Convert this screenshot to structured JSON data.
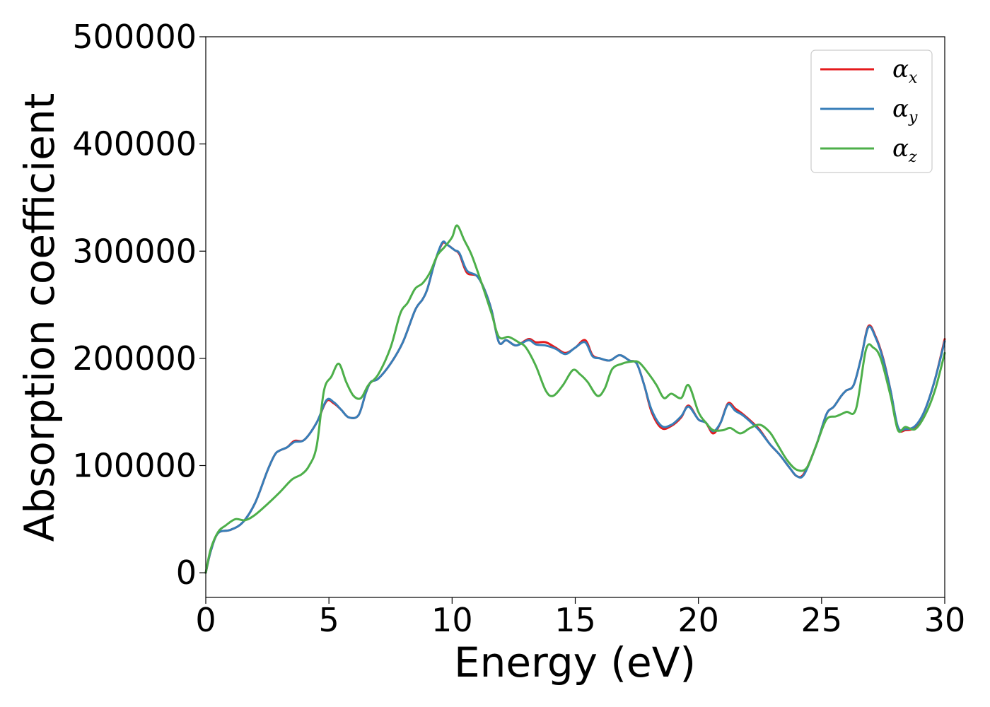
{
  "chart_data": {
    "type": "line",
    "title": "",
    "xlabel": "Energy (eV)",
    "ylabel": "Absorption coefficient",
    "xlim": [
      0,
      30
    ],
    "ylim": [
      -23000,
      500000
    ],
    "x_ticks": [
      0,
      5,
      10,
      15,
      20,
      25,
      30
    ],
    "x_tick_labels": [
      "0",
      "5",
      "10",
      "15",
      "20",
      "25",
      "30"
    ],
    "y_ticks": [
      0,
      100000,
      200000,
      300000,
      400000,
      500000
    ],
    "y_tick_labels": [
      "0",
      "100000",
      "200000",
      "300000",
      "400000",
      "500000"
    ],
    "grid": false,
    "legend_position": "top-right",
    "series": [
      {
        "name": "α",
        "subscript": "x",
        "color": "#e41a1c",
        "points": [
          [
            0,
            0
          ],
          [
            0.2,
            20000
          ],
          [
            0.5,
            37000
          ],
          [
            1,
            40000
          ],
          [
            1.5,
            47000
          ],
          [
            2,
            65000
          ],
          [
            2.5,
            95000
          ],
          [
            2.8,
            110000
          ],
          [
            3,
            114000
          ],
          [
            3.3,
            117000
          ],
          [
            3.6,
            123000
          ],
          [
            4,
            124000
          ],
          [
            4.5,
            140000
          ],
          [
            4.9,
            160000
          ],
          [
            5.2,
            158000
          ],
          [
            5.5,
            152000
          ],
          [
            5.8,
            145000
          ],
          [
            6.2,
            147000
          ],
          [
            6.5,
            168000
          ],
          [
            6.7,
            178000
          ],
          [
            7,
            181000
          ],
          [
            7.5,
            195000
          ],
          [
            8,
            215000
          ],
          [
            8.5,
            245000
          ],
          [
            8.8,
            255000
          ],
          [
            9,
            265000
          ],
          [
            9.3,
            290000
          ],
          [
            9.6,
            307000
          ],
          [
            9.8,
            306000
          ],
          [
            10.1,
            301000
          ],
          [
            10.3,
            297000
          ],
          [
            10.6,
            280000
          ],
          [
            11,
            277000
          ],
          [
            11.3,
            265000
          ],
          [
            11.6,
            245000
          ],
          [
            11.9,
            215000
          ],
          [
            12.2,
            217000
          ],
          [
            12.6,
            212000
          ],
          [
            13.1,
            218000
          ],
          [
            13.4,
            215000
          ],
          [
            13.8,
            215000
          ],
          [
            14.2,
            210000
          ],
          [
            14.6,
            205000
          ],
          [
            15,
            210000
          ],
          [
            15.4,
            217000
          ],
          [
            15.7,
            203000
          ],
          [
            16,
            200000
          ],
          [
            16.4,
            198000
          ],
          [
            16.8,
            203000
          ],
          [
            17.2,
            198000
          ],
          [
            17.5,
            195000
          ],
          [
            17.8,
            175000
          ],
          [
            18.1,
            150000
          ],
          [
            18.5,
            135000
          ],
          [
            18.9,
            137000
          ],
          [
            19.3,
            145000
          ],
          [
            19.6,
            156000
          ],
          [
            20,
            143000
          ],
          [
            20.3,
            140000
          ],
          [
            20.6,
            130000
          ],
          [
            20.9,
            140000
          ],
          [
            21.2,
            158000
          ],
          [
            21.5,
            153000
          ],
          [
            21.8,
            148000
          ],
          [
            22.2,
            140000
          ],
          [
            22.5,
            133000
          ],
          [
            22.9,
            120000
          ],
          [
            23.3,
            110000
          ],
          [
            23.7,
            98000
          ],
          [
            24,
            90000
          ],
          [
            24.3,
            93000
          ],
          [
            24.8,
            120000
          ],
          [
            25.2,
            148000
          ],
          [
            25.5,
            155000
          ],
          [
            25.8,
            165000
          ],
          [
            26,
            170000
          ],
          [
            26.3,
            175000
          ],
          [
            26.6,
            200000
          ],
          [
            26.9,
            230000
          ],
          [
            27.2,
            220000
          ],
          [
            27.5,
            200000
          ],
          [
            27.8,
            170000
          ],
          [
            28.1,
            135000
          ],
          [
            28.4,
            133000
          ],
          [
            28.8,
            136000
          ],
          [
            29.2,
            152000
          ],
          [
            29.6,
            180000
          ],
          [
            30,
            218000
          ]
        ]
      },
      {
        "name": "α",
        "subscript": "y",
        "color": "#377eb8",
        "points": [
          [
            0,
            0
          ],
          [
            0.2,
            20000
          ],
          [
            0.5,
            37000
          ],
          [
            1,
            40000
          ],
          [
            1.5,
            47000
          ],
          [
            2,
            65000
          ],
          [
            2.5,
            95000
          ],
          [
            2.8,
            110000
          ],
          [
            3,
            114000
          ],
          [
            3.3,
            117000
          ],
          [
            3.6,
            122000
          ],
          [
            4,
            124000
          ],
          [
            4.5,
            140000
          ],
          [
            4.9,
            161000
          ],
          [
            5.2,
            159000
          ],
          [
            5.5,
            152000
          ],
          [
            5.8,
            145000
          ],
          [
            6.2,
            147000
          ],
          [
            6.5,
            168000
          ],
          [
            6.7,
            178000
          ],
          [
            7,
            181000
          ],
          [
            7.5,
            195000
          ],
          [
            8,
            215000
          ],
          [
            8.5,
            245000
          ],
          [
            8.8,
            255000
          ],
          [
            9,
            265000
          ],
          [
            9.3,
            290000
          ],
          [
            9.6,
            308000
          ],
          [
            9.8,
            306000
          ],
          [
            10.1,
            301000
          ],
          [
            10.3,
            298000
          ],
          [
            10.6,
            282000
          ],
          [
            11,
            277000
          ],
          [
            11.3,
            265000
          ],
          [
            11.6,
            245000
          ],
          [
            11.9,
            215000
          ],
          [
            12.2,
            217000
          ],
          [
            12.6,
            212000
          ],
          [
            13.1,
            217000
          ],
          [
            13.4,
            213000
          ],
          [
            13.8,
            212000
          ],
          [
            14.2,
            209000
          ],
          [
            14.6,
            204000
          ],
          [
            15,
            210000
          ],
          [
            15.4,
            215000
          ],
          [
            15.7,
            202000
          ],
          [
            16,
            200000
          ],
          [
            16.4,
            198000
          ],
          [
            16.8,
            203000
          ],
          [
            17.2,
            198000
          ],
          [
            17.5,
            195000
          ],
          [
            17.8,
            175000
          ],
          [
            18.1,
            152000
          ],
          [
            18.5,
            137000
          ],
          [
            18.9,
            138000
          ],
          [
            19.3,
            146000
          ],
          [
            19.6,
            155000
          ],
          [
            20,
            143000
          ],
          [
            20.3,
            140000
          ],
          [
            20.6,
            132000
          ],
          [
            20.9,
            140000
          ],
          [
            21.2,
            157000
          ],
          [
            21.5,
            151000
          ],
          [
            21.8,
            147000
          ],
          [
            22.2,
            139000
          ],
          [
            22.5,
            132000
          ],
          [
            22.9,
            120000
          ],
          [
            23.3,
            110000
          ],
          [
            23.7,
            98000
          ],
          [
            24,
            90000
          ],
          [
            24.3,
            92000
          ],
          [
            24.8,
            120000
          ],
          [
            25.2,
            148000
          ],
          [
            25.5,
            155000
          ],
          [
            25.8,
            165000
          ],
          [
            26,
            170000
          ],
          [
            26.3,
            175000
          ],
          [
            26.6,
            200000
          ],
          [
            26.9,
            229000
          ],
          [
            27.2,
            219000
          ],
          [
            27.5,
            199000
          ],
          [
            27.8,
            170000
          ],
          [
            28.1,
            136000
          ],
          [
            28.4,
            134000
          ],
          [
            28.8,
            137000
          ],
          [
            29.2,
            152000
          ],
          [
            29.6,
            180000
          ],
          [
            30,
            216000
          ]
        ]
      },
      {
        "name": "α",
        "subscript": "z",
        "color": "#4daf4a",
        "points": [
          [
            0,
            0
          ],
          [
            0.2,
            22000
          ],
          [
            0.5,
            38000
          ],
          [
            0.8,
            44000
          ],
          [
            1.2,
            50000
          ],
          [
            1.6,
            49000
          ],
          [
            2,
            54000
          ],
          [
            2.5,
            64000
          ],
          [
            3,
            75000
          ],
          [
            3.5,
            87000
          ],
          [
            3.9,
            92000
          ],
          [
            4.2,
            100000
          ],
          [
            4.5,
            118000
          ],
          [
            4.8,
            170000
          ],
          [
            5.1,
            183000
          ],
          [
            5.4,
            195000
          ],
          [
            5.7,
            178000
          ],
          [
            6,
            165000
          ],
          [
            6.3,
            163000
          ],
          [
            6.6,
            175000
          ],
          [
            7,
            185000
          ],
          [
            7.5,
            210000
          ],
          [
            7.9,
            242000
          ],
          [
            8.2,
            252000
          ],
          [
            8.5,
            265000
          ],
          [
            8.8,
            270000
          ],
          [
            9.1,
            280000
          ],
          [
            9.4,
            296000
          ],
          [
            9.7,
            304000
          ],
          [
            10,
            313000
          ],
          [
            10.2,
            324000
          ],
          [
            10.5,
            310000
          ],
          [
            10.8,
            296000
          ],
          [
            11.2,
            270000
          ],
          [
            11.6,
            242000
          ],
          [
            11.9,
            220000
          ],
          [
            12.3,
            220000
          ],
          [
            12.7,
            215000
          ],
          [
            13,
            210000
          ],
          [
            13.4,
            193000
          ],
          [
            13.8,
            170000
          ],
          [
            14.1,
            165000
          ],
          [
            14.5,
            175000
          ],
          [
            14.9,
            189000
          ],
          [
            15.2,
            185000
          ],
          [
            15.5,
            178000
          ],
          [
            15.9,
            165000
          ],
          [
            16.2,
            172000
          ],
          [
            16.5,
            190000
          ],
          [
            16.9,
            195000
          ],
          [
            17.3,
            197000
          ],
          [
            17.6,
            196000
          ],
          [
            18,
            185000
          ],
          [
            18.3,
            175000
          ],
          [
            18.6,
            163000
          ],
          [
            18.9,
            167000
          ],
          [
            19.3,
            163000
          ],
          [
            19.6,
            175000
          ],
          [
            20,
            150000
          ],
          [
            20.3,
            140000
          ],
          [
            20.6,
            133000
          ],
          [
            21,
            133000
          ],
          [
            21.3,
            135000
          ],
          [
            21.7,
            130000
          ],
          [
            22.1,
            135000
          ],
          [
            22.5,
            138000
          ],
          [
            22.9,
            131000
          ],
          [
            23.2,
            120000
          ],
          [
            23.6,
            105000
          ],
          [
            24,
            96000
          ],
          [
            24.4,
            98000
          ],
          [
            24.8,
            120000
          ],
          [
            25.2,
            143000
          ],
          [
            25.6,
            146000
          ],
          [
            26,
            150000
          ],
          [
            26.4,
            153000
          ],
          [
            26.8,
            208000
          ],
          [
            27.1,
            210000
          ],
          [
            27.4,
            200000
          ],
          [
            27.8,
            165000
          ],
          [
            28.1,
            133000
          ],
          [
            28.4,
            136000
          ],
          [
            28.8,
            134000
          ],
          [
            29.2,
            147000
          ],
          [
            29.6,
            170000
          ],
          [
            30,
            205000
          ]
        ]
      }
    ]
  }
}
